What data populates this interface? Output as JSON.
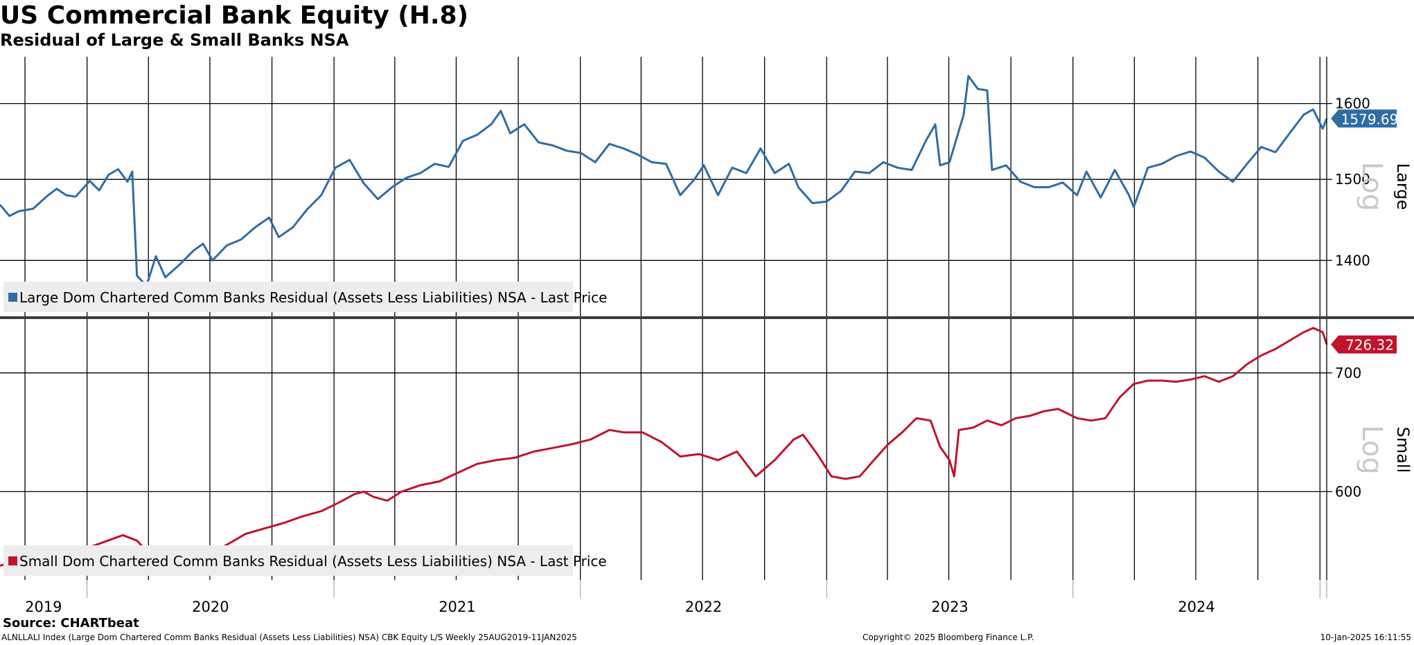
{
  "chart_data": {
    "type": "line",
    "title": "US Commercial Bank Equity (H.8)",
    "subtitle": "Residual of Large & Small Banks NSA",
    "x_range": [
      "2019-08-25",
      "2025-01-11"
    ],
    "year_labels": [
      "2019",
      "2020",
      "2021",
      "2022",
      "2023",
      "2024"
    ],
    "panels": [
      {
        "id": "large",
        "axis_title": "Large",
        "scale_label": "Log",
        "y_scale": "log",
        "ylim": [
          1335,
          1665
        ],
        "yticks": [
          1400,
          1500,
          1600
        ],
        "series": [
          {
            "name": "Large Dom Chartered Comm Banks Residual (Assets Less Liabilities) NSA - Last Price",
            "color": "#2e6ca4",
            "last_value_label": "1579.69",
            "last_value": 1579.69,
            "points": [
              [
                "2019-08-25",
                1468
              ],
              [
                "2019-09-08",
                1454
              ],
              [
                "2019-09-22",
                1460
              ],
              [
                "2019-10-13",
                1463
              ],
              [
                "2019-11-03",
                1479
              ],
              [
                "2019-11-17",
                1488
              ],
              [
                "2019-12-01",
                1480
              ],
              [
                "2019-12-15",
                1478
              ],
              [
                "2020-01-05",
                1498
              ],
              [
                "2020-01-19",
                1486
              ],
              [
                "2020-02-02",
                1506
              ],
              [
                "2020-02-16",
                1513
              ],
              [
                "2020-03-01",
                1497
              ],
              [
                "2020-03-08",
                1510
              ],
              [
                "2020-03-15",
                1382
              ],
              [
                "2020-03-29",
                1370
              ],
              [
                "2020-04-12",
                1405
              ],
              [
                "2020-04-26",
                1380
              ],
              [
                "2020-05-17",
                1395
              ],
              [
                "2020-06-07",
                1412
              ],
              [
                "2020-06-21",
                1420
              ],
              [
                "2020-07-05",
                1400
              ],
              [
                "2020-07-26",
                1418
              ],
              [
                "2020-08-16",
                1425
              ],
              [
                "2020-09-06",
                1440
              ],
              [
                "2020-09-27",
                1452
              ],
              [
                "2020-10-11",
                1428
              ],
              [
                "2020-11-01",
                1440
              ],
              [
                "2020-11-22",
                1462
              ],
              [
                "2020-12-13",
                1480
              ],
              [
                "2021-01-03",
                1515
              ],
              [
                "2021-01-24",
                1525
              ],
              [
                "2021-02-14",
                1495
              ],
              [
                "2021-03-07",
                1475
              ],
              [
                "2021-03-28",
                1490
              ],
              [
                "2021-04-18",
                1502
              ],
              [
                "2021-05-09",
                1508
              ],
              [
                "2021-05-30",
                1520
              ],
              [
                "2021-06-20",
                1516
              ],
              [
                "2021-07-11",
                1550
              ],
              [
                "2021-08-01",
                1558
              ],
              [
                "2021-08-22",
                1572
              ],
              [
                "2021-09-05",
                1590
              ],
              [
                "2021-09-19",
                1560
              ],
              [
                "2021-10-10",
                1572
              ],
              [
                "2021-10-31",
                1548
              ],
              [
                "2021-11-21",
                1544
              ],
              [
                "2021-12-12",
                1537
              ],
              [
                "2022-01-02",
                1534
              ],
              [
                "2022-01-23",
                1522
              ],
              [
                "2022-02-13",
                1546
              ],
              [
                "2022-03-06",
                1540
              ],
              [
                "2022-03-27",
                1532
              ],
              [
                "2022-04-17",
                1522
              ],
              [
                "2022-05-08",
                1520
              ],
              [
                "2022-05-29",
                1480
              ],
              [
                "2022-06-19",
                1500
              ],
              [
                "2022-07-03",
                1518
              ],
              [
                "2022-07-24",
                1480
              ],
              [
                "2022-08-14",
                1515
              ],
              [
                "2022-09-04",
                1508
              ],
              [
                "2022-09-25",
                1540
              ],
              [
                "2022-10-16",
                1508
              ],
              [
                "2022-11-06",
                1520
              ],
              [
                "2022-11-20",
                1490
              ],
              [
                "2022-12-11",
                1470
              ],
              [
                "2023-01-01",
                1472
              ],
              [
                "2023-01-22",
                1485
              ],
              [
                "2023-02-12",
                1510
              ],
              [
                "2023-03-05",
                1508
              ],
              [
                "2023-03-26",
                1522
              ],
              [
                "2023-04-16",
                1515
              ],
              [
                "2023-05-07",
                1512
              ],
              [
                "2023-05-28",
                1550
              ],
              [
                "2023-06-11",
                1572
              ],
              [
                "2023-06-18",
                1518
              ],
              [
                "2023-07-02",
                1522
              ],
              [
                "2023-07-23",
                1585
              ],
              [
                "2023-07-30",
                1638
              ],
              [
                "2023-08-13",
                1620
              ],
              [
                "2023-08-27",
                1618
              ],
              [
                "2023-09-03",
                1512
              ],
              [
                "2023-09-24",
                1518
              ],
              [
                "2023-10-15",
                1497
              ],
              [
                "2023-11-05",
                1490
              ],
              [
                "2023-11-26",
                1490
              ],
              [
                "2023-12-17",
                1496
              ],
              [
                "2024-01-07",
                1480
              ],
              [
                "2024-01-21",
                1510
              ],
              [
                "2024-02-11",
                1477
              ],
              [
                "2024-03-03",
                1512
              ],
              [
                "2024-03-24",
                1480
              ],
              [
                "2024-03-31",
                1465
              ],
              [
                "2024-04-21",
                1515
              ],
              [
                "2024-05-12",
                1520
              ],
              [
                "2024-06-02",
                1530
              ],
              [
                "2024-06-23",
                1536
              ],
              [
                "2024-07-14",
                1528
              ],
              [
                "2024-08-04",
                1510
              ],
              [
                "2024-08-25",
                1497
              ],
              [
                "2024-09-15",
                1520
              ],
              [
                "2024-10-06",
                1542
              ],
              [
                "2024-10-27",
                1535
              ],
              [
                "2024-11-17",
                1560
              ],
              [
                "2024-12-08",
                1585
              ],
              [
                "2024-12-22",
                1592
              ],
              [
                "2025-01-05",
                1566
              ],
              [
                "2025-01-11",
                1579.69
              ]
            ]
          }
        ]
      },
      {
        "id": "small",
        "axis_title": "Small",
        "scale_label": "Log",
        "y_scale": "log",
        "ylim": [
          535,
          750
        ],
        "yticks": [
          600,
          700
        ],
        "series": [
          {
            "name": "Small Dom Chartered Comm Banks Residual (Assets Less Liabilities) NSA - Last Price",
            "color": "#c0132c",
            "last_value_label": "726.32",
            "last_value": 726.32,
            "points": [
              [
                "2019-08-25",
                545
              ],
              [
                "2019-09-08",
                547
              ],
              [
                "2019-09-22",
                543
              ],
              [
                "2019-10-13",
                545
              ],
              [
                "2019-11-03",
                550
              ],
              [
                "2019-12-01",
                555
              ],
              [
                "2019-12-29",
                557
              ],
              [
                "2020-01-26",
                562
              ],
              [
                "2020-02-23",
                567
              ],
              [
                "2020-03-15",
                563
              ],
              [
                "2020-04-05",
                552
              ],
              [
                "2020-04-26",
                548
              ],
              [
                "2020-05-17",
                548
              ],
              [
                "2020-06-07",
                552
              ],
              [
                "2020-07-05",
                554
              ],
              [
                "2020-07-26",
                560
              ],
              [
                "2020-08-23",
                568
              ],
              [
                "2020-09-20",
                572
              ],
              [
                "2020-10-18",
                576
              ],
              [
                "2020-11-15",
                581
              ],
              [
                "2020-12-13",
                585
              ],
              [
                "2021-01-10",
                592
              ],
              [
                "2021-01-31",
                598
              ],
              [
                "2021-02-14",
                600
              ],
              [
                "2021-02-28",
                596
              ],
              [
                "2021-03-21",
                593
              ],
              [
                "2021-04-11",
                600
              ],
              [
                "2021-05-09",
                605
              ],
              [
                "2021-06-06",
                608
              ],
              [
                "2021-07-04",
                615
              ],
              [
                "2021-08-01",
                622
              ],
              [
                "2021-08-29",
                625
              ],
              [
                "2021-09-26",
                627
              ],
              [
                "2021-10-24",
                632
              ],
              [
                "2021-11-21",
                635
              ],
              [
                "2021-12-19",
                638
              ],
              [
                "2022-01-16",
                642
              ],
              [
                "2022-02-13",
                650
              ],
              [
                "2022-03-06",
                648
              ],
              [
                "2022-04-03",
                648
              ],
              [
                "2022-05-01",
                640
              ],
              [
                "2022-05-29",
                628
              ],
              [
                "2022-06-26",
                630
              ],
              [
                "2022-07-24",
                625
              ],
              [
                "2022-08-21",
                632
              ],
              [
                "2022-09-18",
                612
              ],
              [
                "2022-10-16",
                625
              ],
              [
                "2022-11-13",
                642
              ],
              [
                "2022-11-27",
                646
              ],
              [
                "2022-12-18",
                630
              ],
              [
                "2023-01-08",
                612
              ],
              [
                "2023-01-29",
                610
              ],
              [
                "2023-02-19",
                612
              ],
              [
                "2023-03-12",
                625
              ],
              [
                "2023-04-02",
                638
              ],
              [
                "2023-04-23",
                648
              ],
              [
                "2023-05-14",
                660
              ],
              [
                "2023-06-04",
                658
              ],
              [
                "2023-06-18",
                636
              ],
              [
                "2023-07-02",
                625
              ],
              [
                "2023-07-09",
                612
              ],
              [
                "2023-07-16",
                650
              ],
              [
                "2023-08-06",
                652
              ],
              [
                "2023-08-27",
                658
              ],
              [
                "2023-09-17",
                654
              ],
              [
                "2023-10-08",
                660
              ],
              [
                "2023-10-29",
                662
              ],
              [
                "2023-11-19",
                666
              ],
              [
                "2023-12-10",
                668
              ],
              [
                "2024-01-07",
                660
              ],
              [
                "2024-01-28",
                658
              ],
              [
                "2024-02-18",
                660
              ],
              [
                "2024-03-10",
                678
              ],
              [
                "2024-03-31",
                690
              ],
              [
                "2024-04-21",
                693
              ],
              [
                "2024-05-12",
                693
              ],
              [
                "2024-06-02",
                692
              ],
              [
                "2024-06-23",
                694
              ],
              [
                "2024-07-14",
                697
              ],
              [
                "2024-08-04",
                692
              ],
              [
                "2024-08-25",
                697
              ],
              [
                "2024-09-15",
                708
              ],
              [
                "2024-10-06",
                716
              ],
              [
                "2024-10-27",
                722
              ],
              [
                "2024-11-17",
                730
              ],
              [
                "2024-12-08",
                738
              ],
              [
                "2024-12-22",
                742
              ],
              [
                "2025-01-05",
                738
              ],
              [
                "2025-01-11",
                726.32
              ]
            ]
          }
        ]
      }
    ]
  },
  "source": "Source: CHARTbeat",
  "footer": {
    "left": "ALNLLALI Index (Large Dom Chartered Comm Banks Residual (Assets Less Liabilities) NSA) CBK Equity L/S  Weekly 25AUG2019-11JAN2025",
    "center": "Copyright© 2025 Bloomberg Finance L.P.",
    "right": "10-Jan-2025 16:11:55"
  }
}
